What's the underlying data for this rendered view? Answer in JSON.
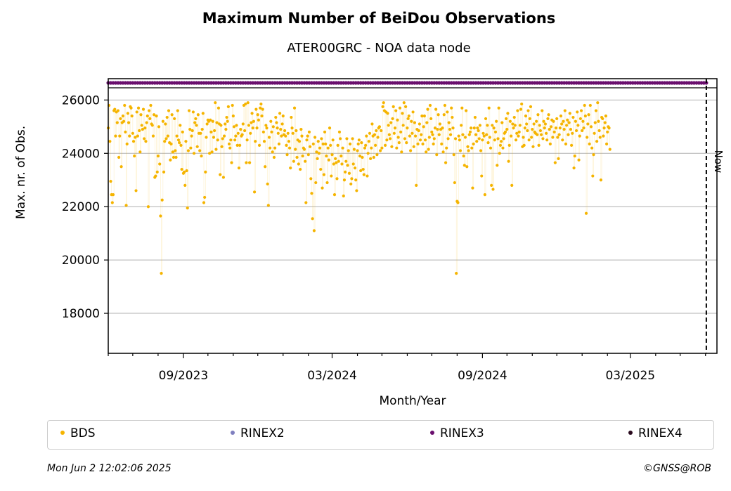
{
  "footer": {
    "timestamp": "Mon Jun  2 12:02:06 2025",
    "copyright": "©GNSS@ROB"
  },
  "chart_data": {
    "type": "scatter",
    "title": "Maximum Number of BeiDou Observations",
    "subtitle": "ATER00GRC - NOA data node",
    "xlabel": "Month/Year",
    "ylabel": "Max. nr. of Obs.",
    "x_ticks": [
      "09/2023",
      "03/2024",
      "09/2024",
      "03/2025"
    ],
    "x_range": [
      "2023-06-01",
      "2025-06-15"
    ],
    "ylim": [
      16500,
      26800
    ],
    "y_ticks": [
      18000,
      20000,
      22000,
      24000,
      26000
    ],
    "grid": "y",
    "now_marker": {
      "date": "2025-06-02",
      "label": "Now"
    },
    "legend_position": "bottom",
    "legend": [
      {
        "name": "BDS",
        "color": "#f5b400"
      },
      {
        "name": "RINEX2",
        "color": "#7f7fbf"
      },
      {
        "name": "RINEX3",
        "color": "#6a0f6e"
      },
      {
        "name": "RINEX4",
        "color": "#2a0a1e"
      }
    ],
    "rinex3_band": {
      "from": "2023-06-01",
      "to": "2025-06-02"
    },
    "series": [
      {
        "name": "BDS",
        "color": "#f5b400",
        "start_date": "2023-06-01",
        "interval_days": 1,
        "values": [
          24950,
          25800,
          24450,
          22950,
          22450,
          22150,
          22450,
          25600,
          25650,
          24650,
          25550,
          25150,
          25600,
          23850,
          24650,
          25300,
          23500,
          25150,
          25400,
          25200,
          25800,
          24800,
          22050,
          24350,
          25500,
          25150,
          24650,
          25750,
          25700,
          25400,
          24750,
          24450,
          23900,
          24600,
          22600,
          25550,
          24650,
          25700,
          24850,
          24050,
          25450,
          25050,
          24900,
          25650,
          24550,
          24950,
          24450,
          25150,
          25400,
          22000,
          25600,
          25300,
          25800,
          25100,
          25050,
          24650,
          25450,
          23100,
          23150,
          25400,
          23300,
          23900,
          25000,
          23600,
          21650,
          19500,
          22250,
          25200,
          23300,
          24450,
          25100,
          24550,
          25350,
          24650,
          25600,
          24400,
          23750,
          24350,
          25450,
          24050,
          23850,
          25300,
          24100,
          23850,
          24650,
          25600,
          24500,
          24400,
          25050,
          24300,
          23400,
          24800,
          23250,
          23300,
          22800,
          24450,
          23350,
          21950,
          24100,
          25600,
          24900,
          24200,
          24650,
          24850,
          25550,
          24000,
          25150,
          25300,
          25050,
          24250,
          25450,
          24750,
          24100,
          24750,
          23900,
          24900,
          25500,
          22150,
          22350,
          23300,
          24600,
          25100,
          25250,
          25200,
          24000,
          25250,
          24800,
          24050,
          25200,
          24600,
          24850,
          25900,
          24150,
          25150,
          24500,
          25700,
          25100,
          23200,
          25050,
          24250,
          24550,
          23100,
          24650,
          25100,
          24900,
          25350,
          25200,
          25750,
          24350,
          24200,
          24500,
          23650,
          25800,
          25400,
          25000,
          24500,
          24650,
          25050,
          24300,
          24750,
          23450,
          24300,
          24900,
          24650,
          24700,
          25100,
          25800,
          24850,
          25850,
          23650,
          24500,
          25900,
          25050,
          23650,
          24750,
          25150,
          25500,
          24950,
          25200,
          22550,
          24450,
          25650,
          24950,
          25450,
          25250,
          24300,
          25700,
          25850,
          25400,
          25650,
          24800,
          24450,
          23500,
          25050,
          24950,
          22850,
          22050,
          24600,
          24200,
          25200,
          24800,
          24050,
          25000,
          23850,
          24200,
          25350,
          25150,
          24950,
          24750,
          24350,
          25500,
          24900,
          24650,
          25100,
          25400,
          24700,
          24850,
          24650,
          24300,
          23950,
          24750,
          24450,
          24200,
          23450,
          25350,
          24950,
          24750,
          23700,
          25700,
          24150,
          24850,
          23850,
          24500,
          23600,
          24450,
          23400,
          24900,
          24650,
          23900,
          24200,
          24150,
          23700,
          22150,
          24500,
          24650,
          23950,
          24800,
          24250,
          23050,
          22500,
          21550,
          24350,
          21100,
          24600,
          22900,
          24050,
          23800,
          24450,
          24000,
          24200,
          23400,
          24550,
          22700,
          24350,
          23200,
          24800,
          24350,
          23900,
          22900,
          24200,
          23750,
          24950,
          24300,
          23150,
          23950,
          24500,
          23600,
          22450,
          23800,
          23650,
          23050,
          24300,
          23700,
          24800,
          24550,
          23900,
          23600,
          24200,
          22400,
          23000,
          23300,
          23700,
          24550,
          23550,
          24100,
          23250,
          24350,
          22850,
          23050,
          24550,
          23600,
          24150,
          23450,
          23000,
          22600,
          24100,
          24350,
          24500,
          23900,
          23350,
          24400,
          23850,
          23400,
          23200,
          24200,
          24300,
          24650,
          23150,
          24000,
          24450,
          24750,
          23800,
          24200,
          25100,
          24650,
          23850,
          24700,
          24300,
          24850,
          23950,
          24600,
          24950,
          25000,
          24100,
          24850,
          24200,
          25750,
          25900,
          25600,
          24300,
          25550,
          24500,
          25500,
          25050,
          24700,
          24550,
          25150,
          24250,
          25300,
          25750,
          24750,
          24950,
          25600,
          24200,
          25250,
          24600,
          24400,
          25700,
          24800,
          24050,
          25500,
          25050,
          25900,
          24550,
          25750,
          24400,
          24950,
          25300,
          25400,
          24650,
          24100,
          25200,
          24750,
          25550,
          24250,
          25150,
          24650,
          22800,
          24900,
          24350,
          24850,
          25100,
          24500,
          24700,
          25400,
          24350,
          25000,
          25400,
          24500,
          24050,
          25150,
          25650,
          24150,
          24600,
          25800,
          25300,
          24800,
          24700,
          24350,
          24550,
          24950,
          25650,
          23950,
          24900,
          25450,
          24700,
          25100,
          24900,
          24350,
          24950,
          24050,
          25450,
          25800,
          23650,
          24200,
          25550,
          24550,
          25150,
          24900,
          24700,
          25700,
          25350,
          24950,
          23950,
          22900,
          24550,
          19500,
          22200,
          22150,
          24650,
          24500,
          24100,
          25050,
          25700,
          24700,
          23900,
          23550,
          24600,
          25600,
          23500,
          24250,
          24100,
          24700,
          24800,
          24950,
          24200,
          22700,
          24350,
          24950,
          25350,
          24700,
          24450,
          24950,
          24850,
          24550,
          25050,
          24100,
          23150,
          24500,
          24750,
          24650,
          22450,
          25300,
          24700,
          25050,
          24400,
          25700,
          24600,
          24200,
          22800,
          25050,
          22650,
          24950,
          24500,
          24800,
          25200,
          23550,
          24550,
          25700,
          24000,
          24300,
          24450,
          25150,
          24200,
          24550,
          24750,
          24800,
          25300,
          24900,
          25500,
          23700,
          24300,
          25200,
          24650,
          22800,
          25100,
          24950,
          25350,
          25050,
          24500,
          24750,
          25600,
          24650,
          24800,
          25050,
          25650,
          25850,
          24250,
          24600,
          24300,
          24950,
          25400,
          25100,
          24850,
          25600,
          24500,
          25300,
          25750,
          24600,
          24900,
          24250,
          25100,
          24800,
          24750,
          25200,
          24700,
          25450,
          24300,
          25050,
          24850,
          24700,
          25600,
          24550,
          25200,
          24950,
          25100,
          24750,
          24500,
          25300,
          25450,
          24900,
          24350,
          25000,
          25250,
          24600,
          25200,
          24800,
          23650,
          24950,
          25300,
          24600,
          23800,
          24700,
          24950,
          25400,
          25100,
          24500,
          25200,
          24900,
          25600,
          24350,
          25050,
          25250,
          24700,
          25150,
          25500,
          24900,
          24300,
          24750,
          25350,
          23450,
          23900,
          25200,
          24850,
          25550,
          25050,
          23750,
          24650,
          25300,
          25600,
          24850,
          25200,
          24950,
          25800,
          25400,
          21750,
          24600,
          25100,
          25450,
          24350,
          25800,
          25000,
          24200,
          23150,
          23950,
          24750,
          25150,
          25600,
          24450,
          25900,
          25200,
          24850,
          24600,
          23000,
          25350,
          25300,
          24650,
          24950,
          25150,
          25400,
          24350,
          24800,
          25000,
          24950,
          24150
        ]
      }
    ]
  }
}
